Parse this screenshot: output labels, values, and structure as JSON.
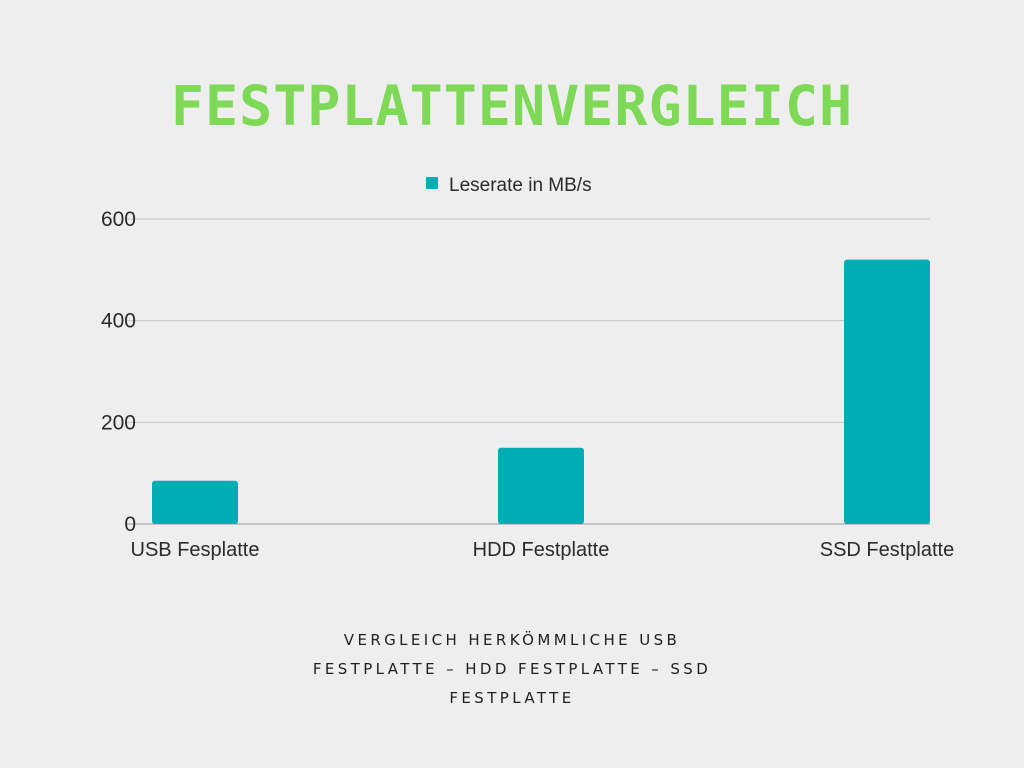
{
  "title": "FESTPLATTENVERGLEICH",
  "caption": {
    "lines": [
      "VERGLEICH HERKÖMMLICHE USB",
      "FESTPLATTE – HDD FESTPLATTE – SSD",
      "FESTPLATTE"
    ]
  },
  "colors": {
    "title": "#7ed957",
    "bar": "#00adb5",
    "grid": "#c4c4c4",
    "axis": "#9a9a9a",
    "text": "#2a2a2a",
    "background": "#eeeeee"
  },
  "chart_data": {
    "type": "bar",
    "categories": [
      "USB Fesplatte",
      "HDD Festplatte",
      "SSD Festplatte"
    ],
    "series": [
      {
        "name": "Leserate in MB/s",
        "values": [
          85,
          150,
          520
        ]
      }
    ],
    "ylim": [
      0,
      600
    ],
    "yticks": [
      0,
      200,
      400,
      600
    ],
    "grid": true,
    "legend": "top-center"
  }
}
